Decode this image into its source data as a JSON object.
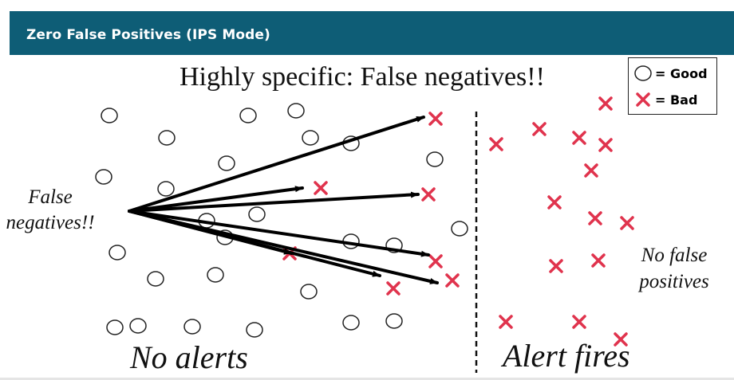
{
  "header": {
    "title": "Zero False Positives (IPS Mode)"
  },
  "diagram": {
    "subtitle": "Highly specific: False negatives!!",
    "left_label": "False negatives!!",
    "right_label": "No false positives",
    "bottom_left": "No alerts",
    "bottom_right": "Alert fires"
  },
  "legend": {
    "good": "= Good",
    "bad": "= Bad"
  },
  "colors": {
    "header_bg": "#0e5d76",
    "bad_mark": "#e0334d",
    "good_mark": "#222222"
  },
  "icons": [
    "good-circle-icon",
    "bad-x-icon",
    "arrow-icon"
  ]
}
